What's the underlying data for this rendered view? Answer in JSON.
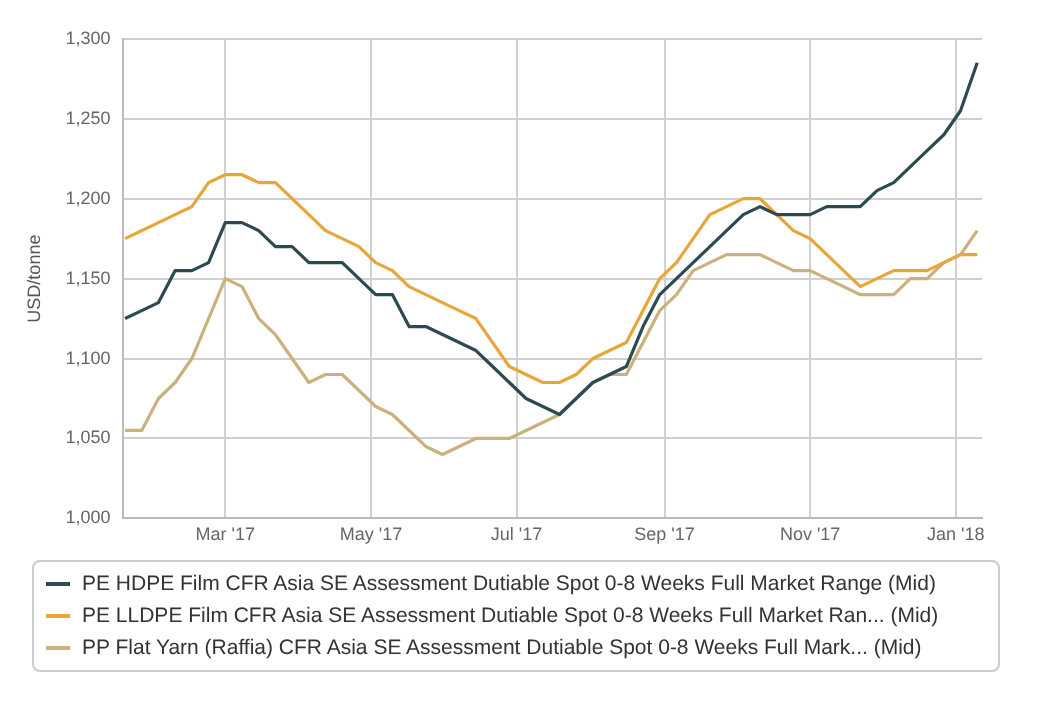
{
  "chart_data": {
    "type": "line",
    "ylabel": "USD/tonne",
    "legend": "bottom",
    "grid": true,
    "marker": "none",
    "line_style": "solid",
    "x": [
      "2017-01-18",
      "2017-01-25",
      "2017-02-01",
      "2017-02-08",
      "2017-02-15",
      "2017-02-22",
      "2017-03-01",
      "2017-03-08",
      "2017-03-15",
      "2017-03-22",
      "2017-03-29",
      "2017-04-05",
      "2017-04-12",
      "2017-04-19",
      "2017-04-26",
      "2017-05-03",
      "2017-05-10",
      "2017-05-17",
      "2017-05-24",
      "2017-05-31",
      "2017-06-07",
      "2017-06-14",
      "2017-06-21",
      "2017-06-28",
      "2017-07-05",
      "2017-07-12",
      "2017-07-19",
      "2017-07-26",
      "2017-08-02",
      "2017-08-09",
      "2017-08-16",
      "2017-08-23",
      "2017-08-30",
      "2017-09-06",
      "2017-09-13",
      "2017-09-20",
      "2017-09-27",
      "2017-10-04",
      "2017-10-11",
      "2017-10-18",
      "2017-10-25",
      "2017-11-01",
      "2017-11-08",
      "2017-11-15",
      "2017-11-22",
      "2017-11-29",
      "2017-12-06",
      "2017-12-13",
      "2017-12-20",
      "2017-12-27",
      "2018-01-03",
      "2018-01-10"
    ],
    "xlim": [
      "2017-01-17",
      "2018-01-12"
    ],
    "xticks": [
      {
        "value": "2017-03-01",
        "label": "Mar '17"
      },
      {
        "value": "2017-05-01",
        "label": "May '17"
      },
      {
        "value": "2017-07-01",
        "label": "Jul '17"
      },
      {
        "value": "2017-09-01",
        "label": "Sep '17"
      },
      {
        "value": "2017-11-01",
        "label": "Nov '17"
      },
      {
        "value": "2018-01-01",
        "label": "Jan '18"
      }
    ],
    "ylim": [
      1000,
      1300
    ],
    "yticks": [
      {
        "value": 1000,
        "label": "1,000"
      },
      {
        "value": 1050,
        "label": "1,050"
      },
      {
        "value": 1100,
        "label": "1,100"
      },
      {
        "value": 1150,
        "label": "1,150"
      },
      {
        "value": 1200,
        "label": "1,200"
      },
      {
        "value": 1250,
        "label": "1,250"
      },
      {
        "value": 1300,
        "label": "1,300"
      }
    ],
    "series": [
      {
        "name": "PE HDPE Film CFR Asia SE Assessment Dutiable Spot 0-8 Weeks Full Market Range (Mid)",
        "color": "#2c4a4f",
        "values": [
          1125,
          1130,
          1135,
          1155,
          1155,
          1160,
          1185,
          1185,
          1180,
          1170,
          1170,
          1160,
          1160,
          1160,
          1150,
          1140,
          1140,
          1120,
          1120,
          1115,
          1110,
          1105,
          1095,
          1085,
          1075,
          1070,
          1065,
          1075,
          1085,
          1090,
          1095,
          1120,
          1140,
          1150,
          1160,
          1170,
          1180,
          1190,
          1195,
          1190,
          1190,
          1190,
          1195,
          1195,
          1195,
          1205,
          1210,
          1220,
          1230,
          1240,
          1255,
          1285
        ]
      },
      {
        "name": "PE LLDPE Film CFR Asia SE Assessment Dutiable Spot 0-8 Weeks Full Market Ran... (Mid)",
        "color": "#e8a63a",
        "values": [
          1175,
          1180,
          1185,
          1190,
          1195,
          1210,
          1215,
          1215,
          1210,
          1210,
          1200,
          1190,
          1180,
          1175,
          1170,
          1160,
          1155,
          1145,
          1140,
          1135,
          1130,
          1125,
          1110,
          1095,
          1090,
          1085,
          1085,
          1090,
          1100,
          1105,
          1110,
          1130,
          1150,
          1160,
          1175,
          1190,
          1195,
          1200,
          1200,
          1190,
          1180,
          1175,
          1165,
          1155,
          1145,
          1150,
          1155,
          1155,
          1155,
          1160,
          1165,
          1165
        ]
      },
      {
        "name": "PP Flat Yarn (Raffia) CFR Asia SE Assessment Dutiable Spot 0-8 Weeks Full Mark... (Mid)",
        "color": "#c9b27c",
        "values": [
          1055,
          1055,
          1075,
          1085,
          1100,
          1125,
          1150,
          1145,
          1125,
          1115,
          1100,
          1085,
          1090,
          1090,
          1080,
          1070,
          1065,
          1055,
          1045,
          1040,
          1045,
          1050,
          1050,
          1050,
          1055,
          1060,
          1065,
          1075,
          1085,
          1090,
          1090,
          1110,
          1130,
          1140,
          1155,
          1160,
          1165,
          1165,
          1165,
          1160,
          1155,
          1155,
          1150,
          1145,
          1140,
          1140,
          1140,
          1150,
          1150,
          1160,
          1165,
          1180
        ]
      }
    ]
  }
}
